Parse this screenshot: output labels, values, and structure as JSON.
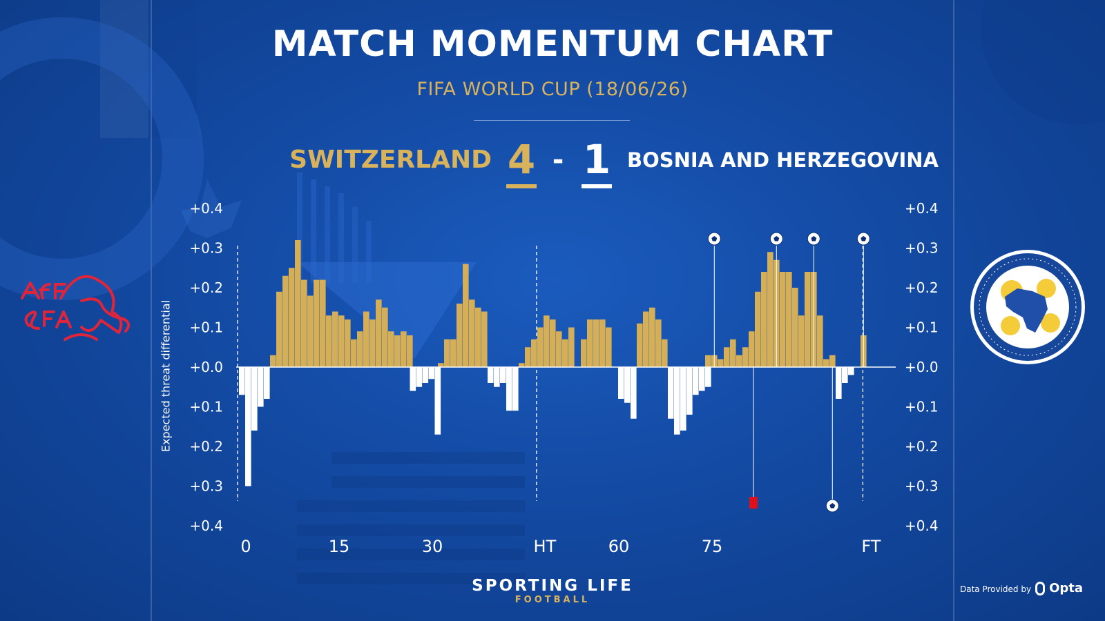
{
  "header": {
    "title": "MATCH MOMENTUM CHART",
    "subtitle": "FIFA WORLD CUP (18/06/26)"
  },
  "match": {
    "home_team": "SWITZERLAND",
    "home_score": "4",
    "separator": "-",
    "away_score": "1",
    "away_team": "BOSNIA AND HERZEGOVINA"
  },
  "footer": {
    "brand": "SPORTING LIFE",
    "brand_sub": "FOOTBALL",
    "provider_label": "Data Provided by",
    "provider_name": "Opta"
  },
  "colors": {
    "home": "#d4af57",
    "away": "#ffffff",
    "background": "#134aa3",
    "red_card": "#e0101a"
  },
  "icons": {
    "home_crest": "swiss-football-association-crest",
    "away_crest": "bosnia-herzegovina-football-federation-crest",
    "goal": "football-icon",
    "red_card": "red-card-icon"
  },
  "chart_data": {
    "type": "bar",
    "ylabel": "Expected threat differential",
    "ylim": [
      -0.4,
      0.4
    ],
    "y_ticks": [
      "+0.4",
      "+0.3",
      "+0.2",
      "+0.1",
      "+0.0",
      "+0.1",
      "+0.2",
      "+0.3",
      "+0.4"
    ],
    "y_tick_values": [
      0.4,
      0.3,
      0.2,
      0.1,
      0.0,
      -0.1,
      -0.2,
      -0.3,
      -0.4
    ],
    "x_ticks": [
      "0",
      "15",
      "30",
      "HT",
      "60",
      "75",
      "FT"
    ],
    "x_tick_minutes": [
      0,
      15,
      30,
      48.1,
      60,
      75,
      100.6
    ],
    "kickoff_minute": 0,
    "halftime_minute": 48.1,
    "fulltime_minute": 100.6,
    "home_series": {
      "name": "SWITZERLAND",
      "color": "#d4af57",
      "bars": [
        [
          5,
          0.03
        ],
        [
          6,
          0.19
        ],
        [
          7,
          0.23
        ],
        [
          8,
          0.25
        ],
        [
          9,
          0.32
        ],
        [
          10,
          0.22
        ],
        [
          11,
          0.18
        ],
        [
          12,
          0.22
        ],
        [
          13,
          0.22
        ],
        [
          14,
          0.13
        ],
        [
          15,
          0.14
        ],
        [
          16,
          0.13
        ],
        [
          17,
          0.12
        ],
        [
          18,
          0.07
        ],
        [
          19,
          0.09
        ],
        [
          20,
          0.14
        ],
        [
          21,
          0.12
        ],
        [
          22,
          0.17
        ],
        [
          23,
          0.15
        ],
        [
          24,
          0.09
        ],
        [
          25,
          0.08
        ],
        [
          26,
          0.09
        ],
        [
          27,
          0.08
        ],
        [
          32,
          0.01
        ],
        [
          33,
          0.07
        ],
        [
          34,
          0.07
        ],
        [
          35,
          0.16
        ],
        [
          36,
          0.26
        ],
        [
          37,
          0.17
        ],
        [
          38,
          0.15
        ],
        [
          39,
          0.14
        ],
        [
          45,
          0.01
        ],
        [
          46,
          0.05
        ],
        [
          47,
          0.07
        ],
        [
          48,
          0.1
        ],
        [
          49,
          0.13
        ],
        [
          50,
          0.12
        ],
        [
          51,
          0.09
        ],
        [
          52,
          0.07
        ],
        [
          53,
          0.1
        ],
        [
          55,
          0.07
        ],
        [
          56,
          0.12
        ],
        [
          57,
          0.12
        ],
        [
          58,
          0.12
        ],
        [
          59,
          0.1
        ],
        [
          64,
          0.11
        ],
        [
          65,
          0.14
        ],
        [
          66,
          0.15
        ],
        [
          67,
          0.12
        ],
        [
          68,
          0.07
        ],
        [
          75,
          0.03
        ],
        [
          76,
          0.03
        ],
        [
          77,
          0.02
        ],
        [
          78,
          0.05
        ],
        [
          79,
          0.07
        ],
        [
          80,
          0.03
        ],
        [
          81,
          0.05
        ],
        [
          82,
          0.09
        ],
        [
          83,
          0.19
        ],
        [
          84,
          0.24
        ],
        [
          85,
          0.29
        ],
        [
          86,
          0.27
        ],
        [
          87,
          0.24
        ],
        [
          88,
          0.24
        ],
        [
          89,
          0.2
        ],
        [
          90,
          0.13
        ],
        [
          91,
          0.24
        ],
        [
          92,
          0.24
        ],
        [
          93,
          0.13
        ],
        [
          94,
          0.02
        ],
        [
          95,
          0.03
        ],
        [
          100,
          0.08
        ]
      ]
    },
    "away_series": {
      "name": "BOSNIA AND HERZEGOVINA",
      "color": "#ffffff",
      "bars": [
        [
          0,
          -0.07
        ],
        [
          1,
          -0.3
        ],
        [
          2,
          -0.16
        ],
        [
          3,
          -0.1
        ],
        [
          4,
          -0.08
        ],
        [
          27.5,
          -0.06
        ],
        [
          28.5,
          -0.05
        ],
        [
          29.5,
          -0.04
        ],
        [
          30.5,
          -0.03
        ],
        [
          31.5,
          -0.17
        ],
        [
          40,
          -0.04
        ],
        [
          41,
          -0.05
        ],
        [
          42,
          -0.04
        ],
        [
          43,
          -0.11
        ],
        [
          44,
          -0.11
        ],
        [
          61,
          -0.08
        ],
        [
          62,
          -0.09
        ],
        [
          63,
          -0.13
        ],
        [
          69,
          -0.13
        ],
        [
          70,
          -0.17
        ],
        [
          71,
          -0.16
        ],
        [
          72,
          -0.12
        ],
        [
          73,
          -0.07
        ],
        [
          74,
          -0.06
        ],
        [
          75,
          -0.05
        ],
        [
          96,
          -0.08
        ],
        [
          97,
          -0.04
        ],
        [
          98,
          -0.02
        ]
      ]
    },
    "goals": [
      {
        "team": "home",
        "minute": 76
      },
      {
        "team": "home",
        "minute": 86
      },
      {
        "team": "home",
        "minute": 92
      },
      {
        "team": "away",
        "minute": 95
      },
      {
        "team": "home",
        "minute": 100
      }
    ],
    "red_cards": [
      {
        "team": "away",
        "minute": 82.3
      }
    ]
  }
}
